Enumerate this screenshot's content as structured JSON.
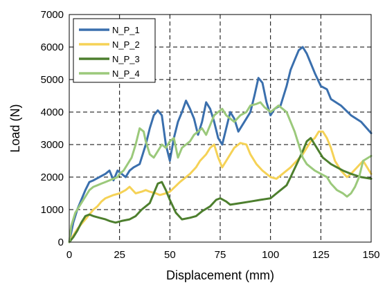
{
  "chart_data": {
    "type": "line",
    "title": "",
    "xlabel": "Displacement (mm)",
    "ylabel": "Load (N)",
    "xlim": [
      0,
      150
    ],
    "ylim": [
      0,
      7000
    ],
    "xticks": [
      "0",
      "25",
      "50",
      "75",
      "100",
      "125",
      "150"
    ],
    "yticks": [
      "0",
      "1000",
      "2000",
      "3000",
      "4000",
      "5000",
      "6000",
      "7000"
    ],
    "grid": "dashed",
    "legend_position": "top-left",
    "series": [
      {
        "name": "N_P_1",
        "color": "#3a6fad",
        "x": [
          0,
          2,
          4,
          6,
          8,
          10,
          12,
          15,
          18,
          20,
          22,
          24,
          26,
          28,
          30,
          32,
          35,
          38,
          40,
          42,
          44,
          46,
          48,
          50,
          52,
          54,
          56,
          58,
          60,
          62,
          64,
          66,
          68,
          70,
          72,
          74,
          76,
          78,
          80,
          82,
          84,
          86,
          88,
          90,
          92,
          94,
          96,
          98,
          100,
          102,
          105,
          108,
          110,
          112,
          114,
          116,
          118,
          120,
          122,
          125,
          128,
          130,
          135,
          140,
          145,
          150
        ],
        "y": [
          0,
          600,
          1000,
          1300,
          1600,
          1850,
          1900,
          2000,
          2100,
          2200,
          1900,
          2200,
          2100,
          2000,
          2200,
          2300,
          2400,
          3000,
          3500,
          3900,
          4050,
          3900,
          3000,
          2500,
          3200,
          3700,
          4000,
          4350,
          4100,
          3800,
          3300,
          3700,
          4300,
          4100,
          3700,
          3200,
          3000,
          3500,
          4000,
          3800,
          3400,
          3600,
          3800,
          4000,
          4500,
          5050,
          4900,
          4300,
          3900,
          4100,
          4200,
          4800,
          5300,
          5600,
          5900,
          6000,
          5800,
          5500,
          5200,
          4800,
          4700,
          4400,
          4200,
          3900,
          3700,
          3350
        ]
      },
      {
        "name": "N_P_2",
        "color": "#f5d256",
        "x": [
          0,
          2,
          4,
          6,
          8,
          10,
          12,
          14,
          16,
          18,
          20,
          22,
          25,
          28,
          30,
          33,
          36,
          38,
          40,
          43,
          45,
          48,
          50,
          55,
          60,
          63,
          65,
          68,
          70,
          72,
          74,
          76,
          78,
          80,
          82,
          85,
          88,
          90,
          93,
          96,
          100,
          103,
          106,
          110,
          113,
          116,
          118,
          120,
          122,
          124,
          126,
          128,
          130,
          132,
          135,
          138,
          140,
          143,
          146,
          150
        ],
        "y": [
          0,
          200,
          400,
          550,
          700,
          850,
          1000,
          1100,
          1250,
          1350,
          1400,
          1450,
          1500,
          1600,
          1700,
          1500,
          1550,
          1600,
          1550,
          1500,
          1450,
          1500,
          1550,
          1850,
          2100,
          2300,
          2500,
          2700,
          2900,
          3000,
          2600,
          2300,
          2500,
          2700,
          2900,
          3050,
          3000,
          2700,
          2400,
          2200,
          2000,
          1950,
          2100,
          2300,
          2500,
          2700,
          2900,
          3100,
          3200,
          3400,
          3400,
          3200,
          2900,
          2500,
          2200,
          2000,
          2100,
          2300,
          2500,
          2100
        ]
      },
      {
        "name": "N_P_3",
        "color": "#4d7f2e",
        "x": [
          0,
          2,
          4,
          6,
          8,
          10,
          12,
          15,
          18,
          20,
          23,
          26,
          30,
          33,
          36,
          40,
          42,
          44,
          46,
          48,
          50,
          53,
          56,
          60,
          63,
          66,
          70,
          73,
          75,
          78,
          80,
          85,
          90,
          95,
          100,
          103,
          105,
          108,
          110,
          113,
          116,
          118,
          120,
          122,
          124,
          126,
          128,
          130,
          133,
          136,
          140,
          145,
          150
        ],
        "y": [
          0,
          150,
          350,
          600,
          800,
          850,
          800,
          750,
          700,
          650,
          600,
          650,
          700,
          800,
          1000,
          1200,
          1500,
          1800,
          1850,
          1600,
          1300,
          900,
          700,
          750,
          800,
          950,
          1100,
          1300,
          1350,
          1250,
          1150,
          1200,
          1250,
          1300,
          1350,
          1500,
          1600,
          1750,
          2000,
          2400,
          2800,
          3100,
          3200,
          3000,
          2800,
          2600,
          2500,
          2400,
          2300,
          2200,
          2100,
          2000,
          1950
        ]
      },
      {
        "name": "N_P_4",
        "color": "#9bc97b",
        "x": [
          0,
          1,
          3,
          5,
          7,
          9,
          10,
          12,
          14,
          16,
          18,
          20,
          22,
          24,
          25,
          27,
          29,
          31,
          33,
          35,
          37,
          38,
          40,
          42,
          44,
          46,
          48,
          50,
          52,
          54,
          56,
          58,
          60,
          62,
          64,
          66,
          68,
          70,
          72,
          74,
          76,
          78,
          80,
          82,
          85,
          88,
          90,
          93,
          95,
          97,
          99,
          100,
          102,
          104,
          106,
          108,
          110,
          112,
          114,
          116,
          118,
          120,
          122,
          125,
          128,
          130,
          133,
          136,
          138,
          140,
          142,
          144,
          146,
          150
        ],
        "y": [
          0,
          500,
          900,
          1100,
          1300,
          1500,
          1600,
          1700,
          1750,
          1800,
          1850,
          1900,
          1950,
          2000,
          2100,
          2200,
          2400,
          2600,
          3000,
          3500,
          3400,
          3100,
          2700,
          2600,
          2800,
          3000,
          2900,
          3100,
          3200,
          2600,
          2900,
          3000,
          3100,
          3300,
          3400,
          3500,
          3300,
          3600,
          3900,
          4000,
          4100,
          3900,
          3800,
          3700,
          3900,
          4000,
          4200,
          4250,
          4300,
          4150,
          4050,
          4000,
          4100,
          4200,
          4100,
          4000,
          3700,
          3400,
          3000,
          2600,
          2400,
          2300,
          2200,
          2100,
          2000,
          1800,
          1600,
          1500,
          1400,
          1500,
          1700,
          2000,
          2500,
          2650
        ]
      }
    ]
  }
}
